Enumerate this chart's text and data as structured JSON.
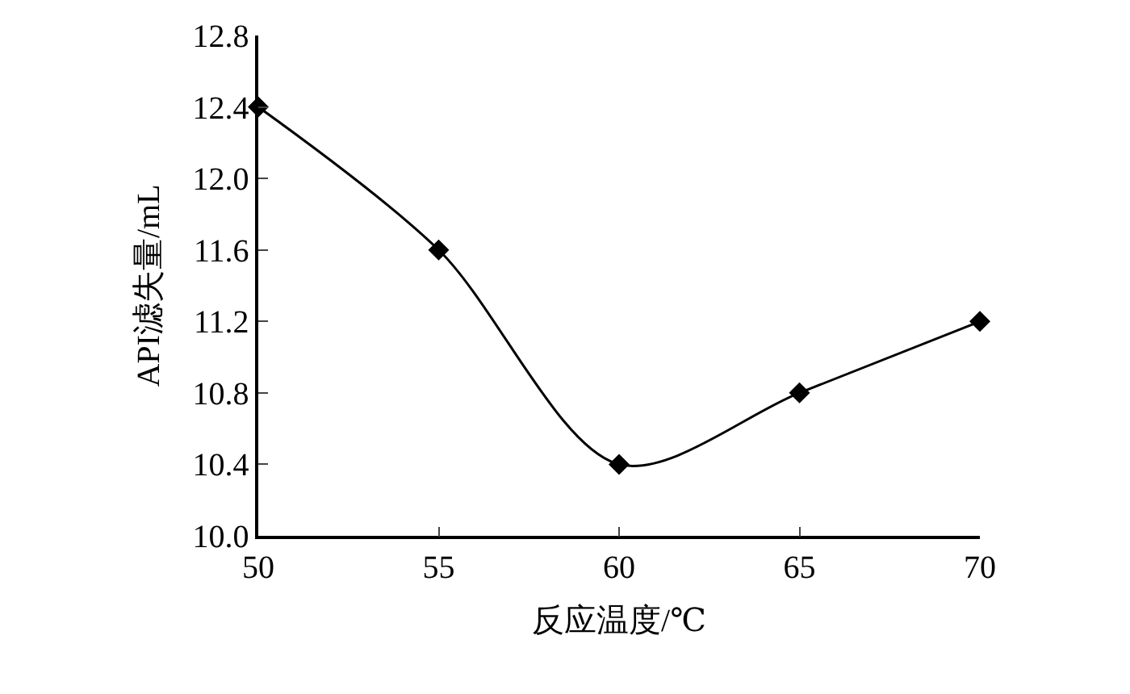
{
  "chart_data": {
    "type": "line",
    "xlabel": "反应温度/℃",
    "ylabel": "API滤失量/mL",
    "x": [
      50,
      55,
      60,
      65,
      70
    ],
    "series": [
      {
        "color": "#000000",
        "values": [
          12.4,
          11.6,
          10.4,
          10.8,
          11.2
        ]
      }
    ],
    "xlim": [
      50,
      70
    ],
    "xticks": [
      50,
      55,
      60,
      65,
      70
    ],
    "ylim": [
      10.0,
      12.8
    ],
    "yticks": [
      {
        "value": 10.0,
        "label": "10.0"
      },
      {
        "value": 10.4,
        "label": "10.4"
      },
      {
        "value": 10.8,
        "label": "10.8"
      },
      {
        "value": 11.2,
        "label": "11.2"
      },
      {
        "value": 11.6,
        "label": "11.6"
      },
      {
        "value": 12.0,
        "label": "12.0"
      },
      {
        "value": 12.4,
        "label": "12.4"
      },
      {
        "value": 12.8,
        "label": "12.8"
      }
    ],
    "marker": "diamond",
    "line_style": "solid",
    "grid": false,
    "legend": false
  }
}
